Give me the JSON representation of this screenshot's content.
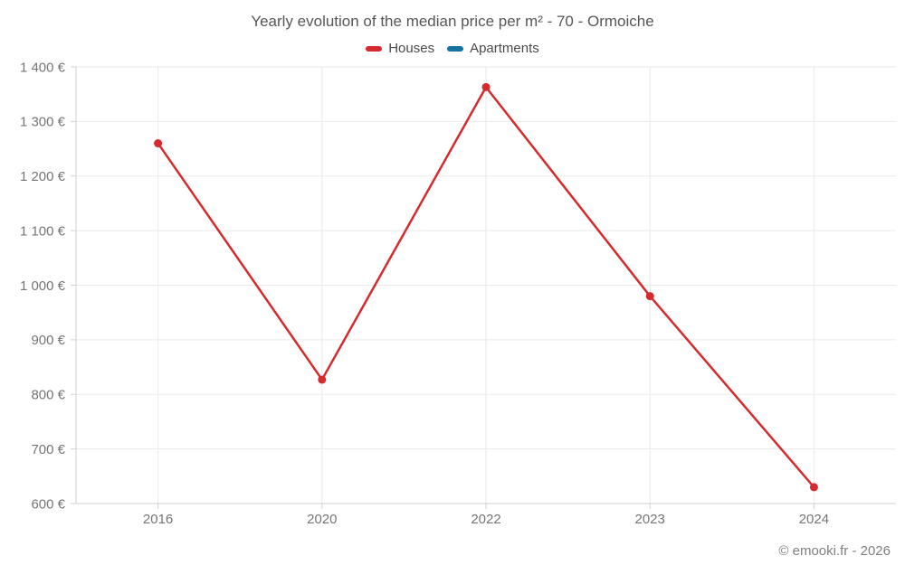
{
  "header": {
    "title": "Yearly evolution of the median price per m² - 70 - Ormoiche"
  },
  "legend": {
    "items": [
      {
        "label": "Houses",
        "color": "#d62b2e"
      },
      {
        "label": "Apartments",
        "color": "#1373a1"
      }
    ]
  },
  "footer": {
    "credit": "© emooki.fr - 2026"
  },
  "chart_data": {
    "type": "line",
    "title": "Yearly evolution of the median price per m² - 70 - Ormoiche",
    "categories": [
      "2016",
      "2020",
      "2022",
      "2023",
      "2024"
    ],
    "series": [
      {
        "name": "Houses",
        "color": "#d62b2e",
        "values": [
          1260,
          827,
          1363,
          980,
          630
        ]
      },
      {
        "name": "Apartments",
        "color": "#1373a1",
        "values": []
      }
    ],
    "xlabel": "",
    "ylabel": "",
    "ylim": [
      600,
      1400
    ],
    "ytick_step": 100,
    "ytick_suffix": " €",
    "grid": true,
    "legend_position": "top",
    "colors": {
      "grid_line": "#eaeaea",
      "axis_line": "#d0d0d0",
      "tick_label": "#757575"
    }
  }
}
